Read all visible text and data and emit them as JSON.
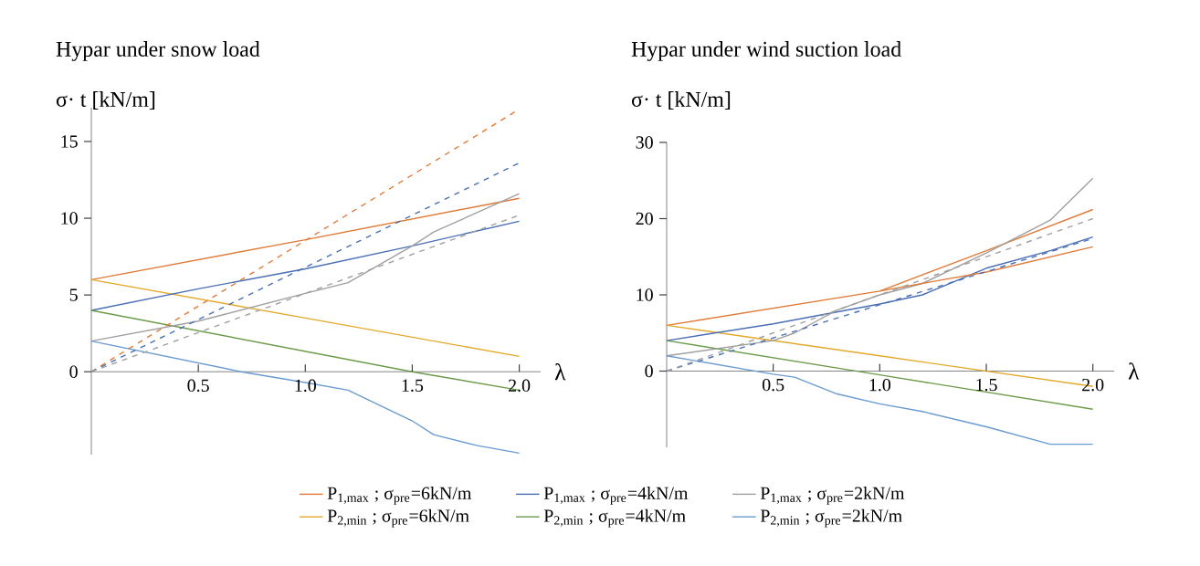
{
  "chart_data": [
    {
      "type": "line",
      "title": "Hypar under snow load",
      "ylabel": "σ· t [kN/m]",
      "xlabel": "λ",
      "xlim": [
        0,
        2.1
      ],
      "ylim": [
        -5.4,
        17.2
      ],
      "xticks": [
        {
          "value": 0.5,
          "label": "0.5"
        },
        {
          "value": 1,
          "label": "1.0"
        },
        {
          "value": 1.5,
          "label": "1.5"
        },
        {
          "value": 2,
          "label": "2.0"
        }
      ],
      "yticks": [
        0,
        5,
        10,
        15
      ],
      "legend": "bottom",
      "marker": "none",
      "series": [
        {
          "name": "P$_{1,max}$ ; σ$_{pre}$=6kN/m",
          "color": "#e07b39",
          "x": [
            0,
            1,
            2
          ],
          "values": [
            6,
            8.6,
            11.3
          ]
        },
        {
          "name": "P$_{2,min}$ ; σ$_{pre}$=6kN/m",
          "color": "#e3a92b",
          "x": [
            0,
            1,
            2
          ],
          "values": [
            6,
            3.5,
            1
          ]
        },
        {
          "name": "P$_{1,max}$ ; σ$_{pre}$=4kN/m",
          "color": "#4a6fb5",
          "x": [
            0,
            0.5,
            1,
            1.5,
            2
          ],
          "values": [
            4,
            5.4,
            6.7,
            8.2,
            9.8
          ]
        },
        {
          "name": "P$_{2,min}$ ; σ$_{pre}$=4kN/m",
          "color": "#6c9b4a",
          "x": [
            0,
            1.5,
            2
          ],
          "values": [
            4,
            0,
            -1.2
          ]
        },
        {
          "name": "P$_{1,max}$ ; σ$_{pre}$=2kN/m",
          "color": "#a0a0a0",
          "x": [
            0,
            0.5,
            1,
            1.2,
            1.5,
            1.6,
            2
          ],
          "values": [
            2,
            3.3,
            5.1,
            5.8,
            8.2,
            9.1,
            11.6
          ]
        },
        {
          "name": "P$_{2,min}$ ; σ$_{pre}$=2kN/m",
          "color": "#6a9bd1",
          "x": [
            0,
            0.7,
            1,
            1.2,
            1.5,
            1.6,
            1.8,
            2
          ],
          "values": [
            2,
            0,
            -0.7,
            -1.2,
            -3.2,
            -4.1,
            -4.8,
            -5.3
          ]
        },
        {
          "color": "#e07b39",
          "line_style": "dashed",
          "x": [
            0,
            2
          ],
          "values": [
            0,
            17.1
          ]
        },
        {
          "color": "#4a6fb5",
          "line_style": "dashed",
          "x": [
            0,
            2
          ],
          "values": [
            0,
            13.6
          ]
        },
        {
          "color": "#a0a0a0",
          "line_style": "dashed",
          "x": [
            0,
            2
          ],
          "values": [
            0,
            10.2
          ]
        }
      ]
    },
    {
      "type": "line",
      "title": "Hypar under wind suction load",
      "ylabel": "σ· t [kN/m]",
      "xlabel": "λ",
      "xlim": [
        0,
        2.1
      ],
      "ylim": [
        -10,
        30
      ],
      "xticks": [
        {
          "value": 0.5,
          "label": "0.5"
        },
        {
          "value": 1,
          "label": "1.0"
        },
        {
          "value": 1.5,
          "label": "1.5"
        },
        {
          "value": 2,
          "label": "2.0"
        }
      ],
      "yticks": [
        0,
        10,
        20,
        30
      ],
      "marker": "none",
      "series": [
        {
          "color": "#e07b39",
          "x": [
            0,
            1,
            1.5,
            2
          ],
          "values": [
            6,
            10.5,
            15.8,
            21.2
          ]
        },
        {
          "color": "#e3a92b",
          "x": [
            0,
            1,
            2
          ],
          "values": [
            6,
            2,
            -2
          ]
        },
        {
          "color": "#4a6fb5",
          "x": [
            0,
            0.5,
            1,
            1.2,
            1.5,
            1.8,
            2
          ],
          "values": [
            4,
            6.2,
            8.8,
            10,
            13.5,
            15.8,
            17.6
          ]
        },
        {
          "color": "#6c9b4a",
          "x": [
            0,
            1,
            2
          ],
          "values": [
            4,
            -0.5,
            -5
          ]
        },
        {
          "color": "#a0a0a0",
          "x": [
            0,
            0.5,
            0.6,
            0.8,
            1,
            1.2,
            1.5,
            1.8,
            2
          ],
          "values": [
            2,
            4,
            5,
            8,
            10,
            11.5,
            15.5,
            19.8,
            25.3
          ]
        },
        {
          "color": "#6a9bd1",
          "x": [
            0,
            0.5,
            0.6,
            0.8,
            1,
            1.2,
            1.5,
            1.8,
            2
          ],
          "values": [
            2,
            -0.4,
            -0.8,
            -3,
            -4.3,
            -5.3,
            -7.3,
            -9.6,
            -9.6
          ]
        },
        {
          "color": "#e07b39",
          "x": [
            1,
            1.5,
            2
          ],
          "values": [
            10.5,
            13,
            16.3
          ]
        },
        {
          "color": "#4a6fb5",
          "line_style": "dashed",
          "x": [
            0,
            2
          ],
          "values": [
            0,
            17.4
          ]
        },
        {
          "color": "#a0a0a0",
          "line_style": "dashed",
          "x": [
            0,
            2
          ],
          "values": [
            0,
            20
          ]
        }
      ]
    }
  ]
}
